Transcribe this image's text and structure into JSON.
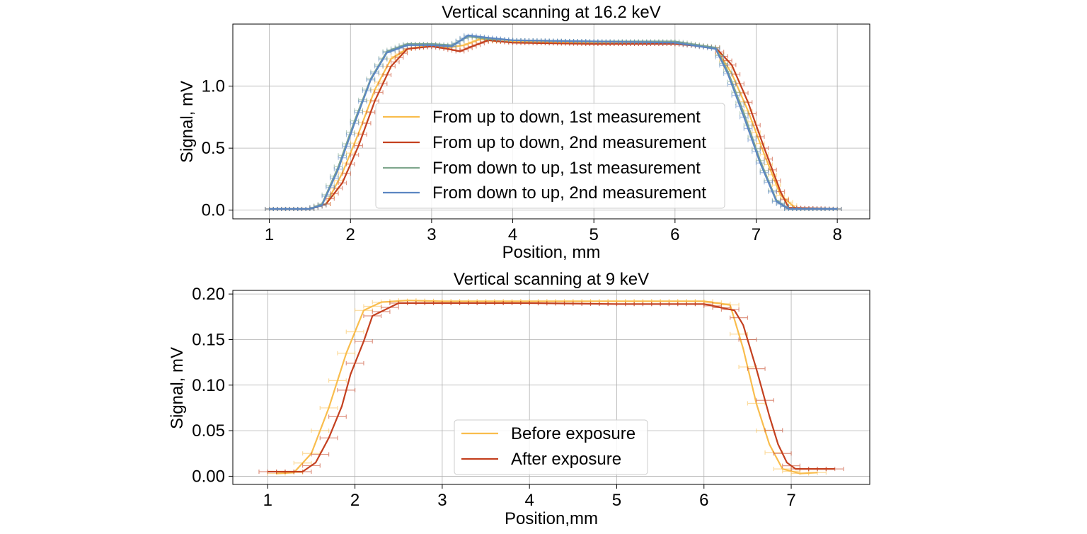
{
  "chart_data": [
    {
      "type": "line",
      "title": "Vertical scanning at 16.2 keV",
      "xlabel": "Position, mm",
      "ylabel": "Signal, mV",
      "xlim": [
        0.55,
        8.4
      ],
      "ylim": [
        -0.07,
        1.5
      ],
      "xticks": [
        1,
        2,
        3,
        4,
        5,
        6,
        7,
        8
      ],
      "xtick_labels": [
        "1",
        "2",
        "3",
        "4",
        "5",
        "6",
        "7",
        "8"
      ],
      "yticks": [
        0.0,
        0.5,
        1.0
      ],
      "ytick_labels": [
        "0.0",
        "0.5",
        "1.0"
      ],
      "grid": true,
      "legend_position": "lower center",
      "error_bars": "horizontal, ±0.05 mm",
      "series": [
        {
          "name": "From up to down, 1st measurement",
          "color": "#f9bd4d",
          "x": [
            1.0,
            1.5,
            1.7,
            1.9,
            2.1,
            2.3,
            2.5,
            2.7,
            3.0,
            3.2,
            3.4,
            3.6,
            3.8,
            4.0,
            5.0,
            6.0,
            6.5,
            6.7,
            6.9,
            7.1,
            7.3,
            7.5,
            8.0
          ],
          "y": [
            0.01,
            0.01,
            0.05,
            0.3,
            0.62,
            0.97,
            1.22,
            1.3,
            1.33,
            1.31,
            1.33,
            1.38,
            1.36,
            1.36,
            1.35,
            1.35,
            1.31,
            1.1,
            0.8,
            0.45,
            0.12,
            0.01,
            0.01
          ]
        },
        {
          "name": "From up to down, 2nd measurement",
          "color": "#c4401f",
          "x": [
            1.0,
            1.5,
            1.7,
            1.9,
            2.1,
            2.3,
            2.5,
            2.7,
            3.0,
            3.2,
            3.35,
            3.5,
            3.7,
            4.0,
            5.0,
            6.0,
            6.5,
            6.7,
            6.9,
            7.1,
            7.3,
            7.4,
            8.0
          ],
          "y": [
            0.01,
            0.01,
            0.05,
            0.22,
            0.52,
            0.88,
            1.16,
            1.3,
            1.32,
            1.3,
            1.28,
            1.32,
            1.37,
            1.35,
            1.34,
            1.34,
            1.31,
            1.17,
            0.87,
            0.5,
            0.15,
            0.02,
            0.01
          ]
        },
        {
          "name": "From down to up, 1st measurement",
          "color": "#7fa78d",
          "x": [
            1.0,
            1.5,
            1.65,
            1.85,
            2.05,
            2.25,
            2.45,
            2.7,
            3.0,
            3.25,
            3.45,
            3.7,
            4.0,
            5.0,
            6.0,
            6.5,
            6.65,
            6.85,
            7.05,
            7.25,
            7.4,
            8.0
          ],
          "y": [
            0.01,
            0.01,
            0.05,
            0.35,
            0.72,
            1.06,
            1.28,
            1.34,
            1.34,
            1.33,
            1.4,
            1.38,
            1.37,
            1.36,
            1.36,
            1.31,
            1.12,
            0.78,
            0.4,
            0.08,
            0.01,
            0.01
          ]
        },
        {
          "name": "From down to up, 2nd measurement",
          "color": "#5b86c2",
          "x": [
            1.0,
            1.5,
            1.65,
            1.85,
            2.05,
            2.25,
            2.45,
            2.7,
            3.0,
            3.25,
            3.45,
            3.7,
            4.0,
            5.0,
            6.0,
            6.5,
            6.65,
            6.85,
            7.05,
            7.25,
            7.4,
            8.0
          ],
          "y": [
            0.01,
            0.01,
            0.04,
            0.33,
            0.7,
            1.05,
            1.27,
            1.33,
            1.33,
            1.32,
            1.41,
            1.39,
            1.37,
            1.36,
            1.35,
            1.3,
            1.1,
            0.75,
            0.38,
            0.07,
            0.01,
            0.01
          ]
        }
      ]
    },
    {
      "type": "line",
      "title": "Vertical scanning at 9 keV",
      "xlabel": "Position,mm",
      "ylabel": "Signal, mV",
      "xlim": [
        0.6,
        7.9
      ],
      "ylim": [
        -0.009,
        0.204
      ],
      "xticks": [
        1,
        2,
        3,
        4,
        5,
        6,
        7
      ],
      "xtick_labels": [
        "1",
        "2",
        "3",
        "4",
        "5",
        "6",
        "7"
      ],
      "yticks": [
        0.0,
        0.05,
        0.1,
        0.15,
        0.2
      ],
      "ytick_labels": [
        "0.00",
        "0.05",
        "0.10",
        "0.15",
        "0.20"
      ],
      "grid": true,
      "legend_position": "lower center",
      "error_bars": "horizontal, ±0.1 mm",
      "series": [
        {
          "name": "Before exposure",
          "color": "#f9bd4d",
          "x": [
            1.1,
            1.3,
            1.5,
            1.7,
            1.9,
            2.1,
            2.3,
            2.6,
            3.0,
            4.0,
            5.0,
            6.0,
            6.3,
            6.45,
            6.6,
            6.75,
            6.9,
            7.1,
            7.3
          ],
          "y": [
            0.003,
            0.004,
            0.025,
            0.075,
            0.135,
            0.182,
            0.191,
            0.193,
            0.192,
            0.192,
            0.192,
            0.192,
            0.188,
            0.14,
            0.08,
            0.035,
            0.008,
            0.003,
            0.004
          ]
        },
        {
          "name": "After exposure",
          "color": "#c4401f",
          "x": [
            1.0,
            1.4,
            1.55,
            1.7,
            1.85,
            1.95,
            2.1,
            2.2,
            2.5,
            3.0,
            4.0,
            5.0,
            6.0,
            6.35,
            6.45,
            6.6,
            6.75,
            6.85,
            6.95,
            7.05,
            7.5
          ],
          "y": [
            0.005,
            0.005,
            0.015,
            0.042,
            0.077,
            0.112,
            0.148,
            0.176,
            0.19,
            0.19,
            0.19,
            0.189,
            0.189,
            0.182,
            0.166,
            0.118,
            0.066,
            0.035,
            0.015,
            0.008,
            0.008
          ]
        }
      ]
    }
  ]
}
